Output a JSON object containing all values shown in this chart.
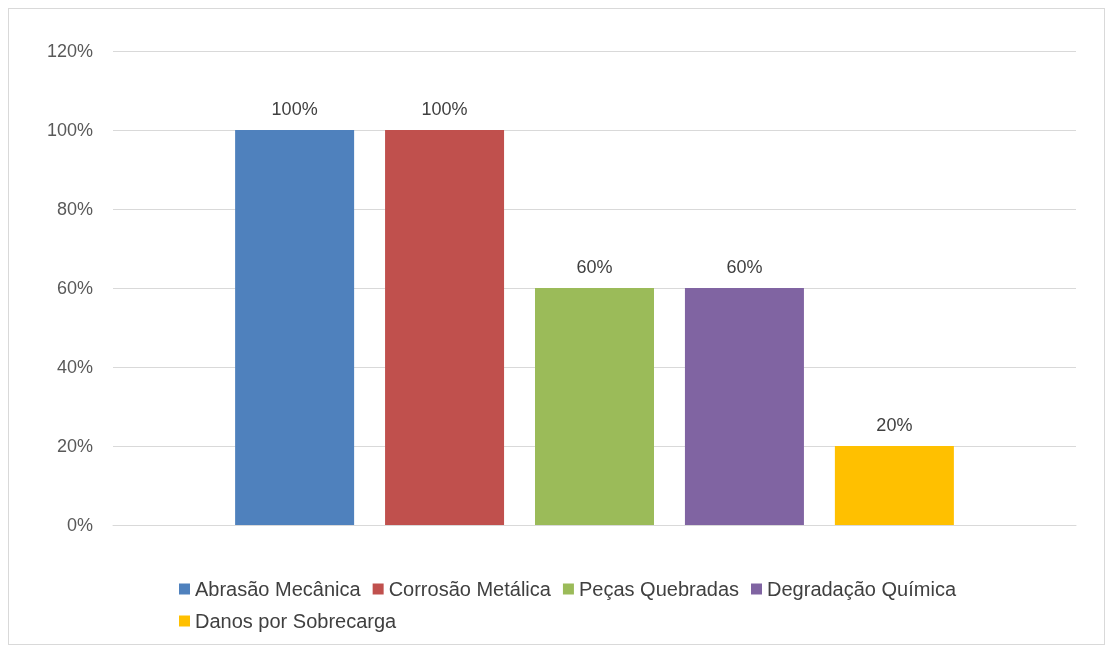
{
  "chart_data": {
    "type": "bar",
    "categories": [
      null
    ],
    "series": [
      {
        "name": "Abrasão Mecânica",
        "color": "#4f81bd",
        "values": [
          100
        ],
        "value_labels": [
          "100%"
        ]
      },
      {
        "name": "Corrosão Metálica",
        "color": "#c0504d",
        "values": [
          100
        ],
        "value_labels": [
          "100%"
        ]
      },
      {
        "name": "Peças Quebradas",
        "color": "#9bbb59",
        "values": [
          60
        ],
        "value_labels": [
          "60%"
        ]
      },
      {
        "name": "Degradação Química",
        "color": "#8064a2",
        "values": [
          60
        ],
        "value_labels": [
          "60%"
        ]
      },
      {
        "name": "Danos por Sobrecarga",
        "color": "#ffc000",
        "values": [
          20
        ],
        "value_labels": [
          "20%"
        ]
      }
    ],
    "ylim": [
      0,
      120
    ],
    "yticks": [
      {
        "value": 0,
        "label": "0%"
      },
      {
        "value": 20,
        "label": "20%"
      },
      {
        "value": 40,
        "label": "40%"
      },
      {
        "value": 60,
        "label": "60%"
      },
      {
        "value": 80,
        "label": "80%"
      },
      {
        "value": 100,
        "label": "100%"
      },
      {
        "value": 120,
        "label": "120%"
      }
    ],
    "grid": "y",
    "legend": "bottom"
  }
}
